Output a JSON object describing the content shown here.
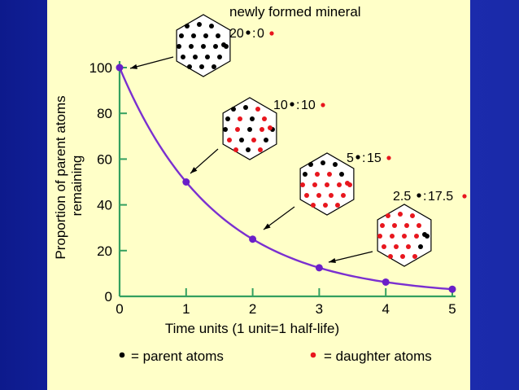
{
  "chart_data": {
    "type": "line",
    "x": [
      0,
      1,
      2,
      3,
      4,
      5
    ],
    "y": [
      100,
      50,
      25,
      12.5,
      6.25,
      3.125
    ],
    "xlabel": "Time units (1 unit=1 half-life)",
    "ylabel_line1": "Proportion of parent atoms",
    "ylabel_line2": "remaining",
    "xticks": [
      "0",
      "1",
      "2",
      "3",
      "4",
      "5"
    ],
    "yticks": [
      "0",
      "20",
      "40",
      "60",
      "80",
      "100"
    ],
    "xlim": [
      0,
      5
    ],
    "ylim": [
      0,
      100
    ],
    "line_color": "#7a2fd0",
    "marker_color": "#6a1fc8",
    "axis_color": "#33a060",
    "annotations": [
      {
        "title": "newly formed mineral",
        "parent": "20",
        "sep": ":",
        "daughter": "0",
        "at_x": 0,
        "parent_count": 20,
        "daughter_count": 0
      },
      {
        "title": "",
        "parent": "10",
        "sep": ":",
        "daughter": "10",
        "at_x": 1,
        "parent_count": 10,
        "daughter_count": 10
      },
      {
        "title": "",
        "parent": "5",
        "sep": ":",
        "daughter": "15",
        "at_x": 2,
        "parent_count": 5,
        "daughter_count": 15
      },
      {
        "title": "",
        "parent": "2.5",
        "sep": ":",
        "daughter": "17.5",
        "at_x": 3,
        "parent_count": 3,
        "daughter_count": 17
      }
    ],
    "legend": {
      "parent_label": "= parent atoms",
      "daughter_label": "= daughter atoms",
      "parent_color": "#000000",
      "daughter_color": "#e8161e"
    }
  }
}
